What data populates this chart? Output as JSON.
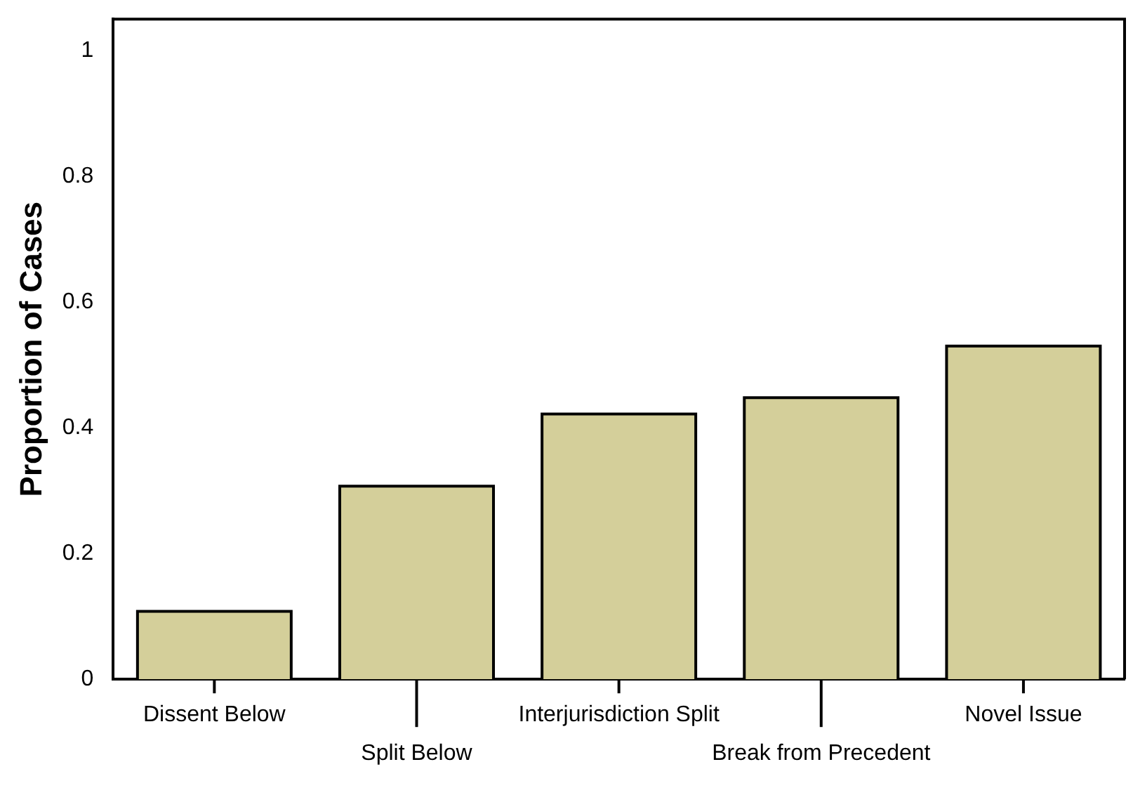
{
  "chart_data": {
    "type": "bar",
    "ylabel": "Proportion of Cases",
    "categories": [
      "Dissent Below",
      "Split Below",
      "Interjurisdiction Split",
      "Break from Precedent",
      "Novel Issue"
    ],
    "values": [
      0.108,
      0.307,
      0.422,
      0.448,
      0.53
    ],
    "color": "#d4cf9a",
    "ylim": [
      0,
      1.05
    ],
    "yticks": [
      0,
      0.2,
      0.4,
      0.6,
      0.8,
      1
    ],
    "grid": false,
    "legend": false
  }
}
